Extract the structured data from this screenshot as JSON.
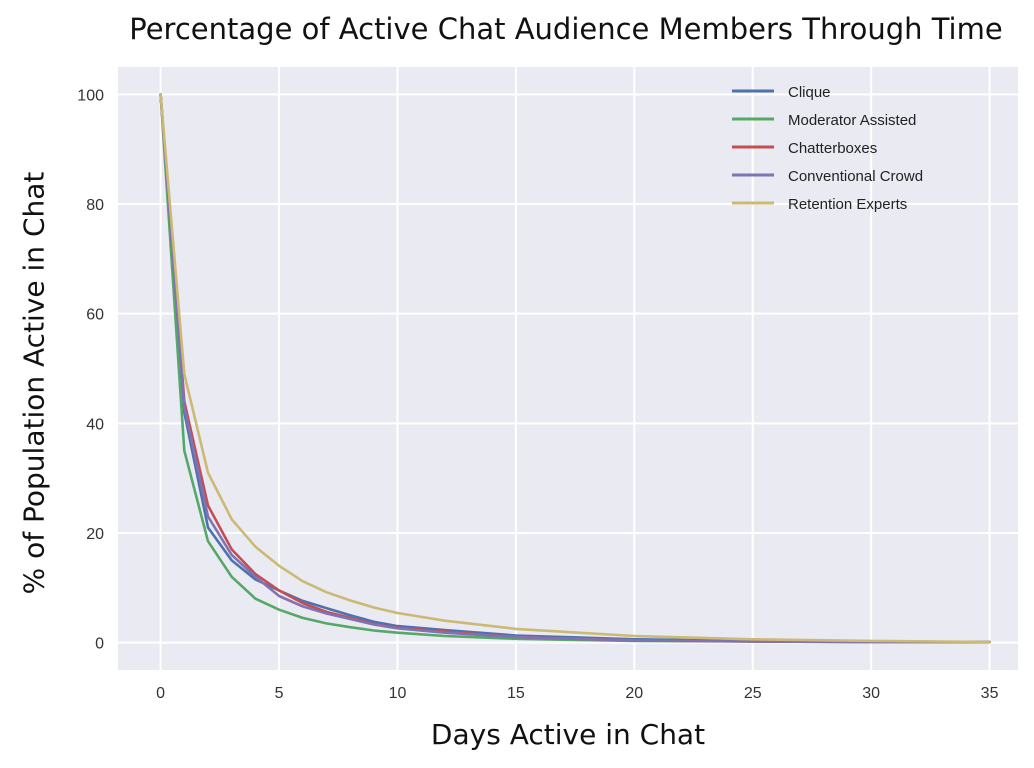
{
  "chart_data": {
    "type": "line",
    "title": "Percentage of Active Chat Audience Members Through Time",
    "xlabel": "Days Active in Chat",
    "ylabel": "% of Population Active in Chat",
    "xlim": [
      -1.8,
      36.2
    ],
    "ylim": [
      -5,
      105
    ],
    "xticks": [
      0,
      5,
      10,
      15,
      20,
      25,
      30,
      35
    ],
    "yticks": [
      0,
      20,
      40,
      60,
      80,
      100
    ],
    "grid": true,
    "legend_position": "top-right",
    "x": [
      0,
      1,
      2,
      3,
      4,
      5,
      6,
      7,
      8,
      9,
      10,
      12,
      15,
      20,
      25,
      30,
      35
    ],
    "series": [
      {
        "name": "Clique",
        "color": "#4c72b0",
        "values": [
          100,
          42,
          21,
          15,
          11.5,
          9.5,
          7.6,
          6.3,
          5,
          3.8,
          3,
          2.3,
          1.3,
          0.6,
          0.3,
          0.2,
          0.1
        ]
      },
      {
        "name": "Moderator Assisted",
        "color": "#55a868",
        "values": [
          100,
          35,
          18.5,
          12,
          8,
          6,
          4.5,
          3.5,
          2.8,
          2.2,
          1.8,
          1.2,
          0.7,
          0.3,
          0.2,
          0.1,
          0.1
        ]
      },
      {
        "name": "Chatterboxes",
        "color": "#c44e52",
        "values": [
          100,
          44,
          25,
          17,
          12.5,
          9.5,
          7.2,
          5.6,
          4.5,
          3.4,
          2.7,
          2,
          1,
          0.4,
          0.2,
          0.1,
          0.1
        ]
      },
      {
        "name": "Conventional Crowd",
        "color": "#8172b2",
        "values": [
          100,
          43,
          23,
          16,
          12,
          8.5,
          6.6,
          5.3,
          4.3,
          3.3,
          2.6,
          1.8,
          1,
          0.4,
          0.2,
          0.1,
          0.1
        ]
      },
      {
        "name": "Retention Experts",
        "color": "#ccb974",
        "values": [
          100,
          49,
          31,
          22.5,
          17.5,
          14,
          11.2,
          9.2,
          7.7,
          6.4,
          5.4,
          4,
          2.5,
          1.2,
          0.6,
          0.3,
          0.1
        ]
      }
    ]
  }
}
